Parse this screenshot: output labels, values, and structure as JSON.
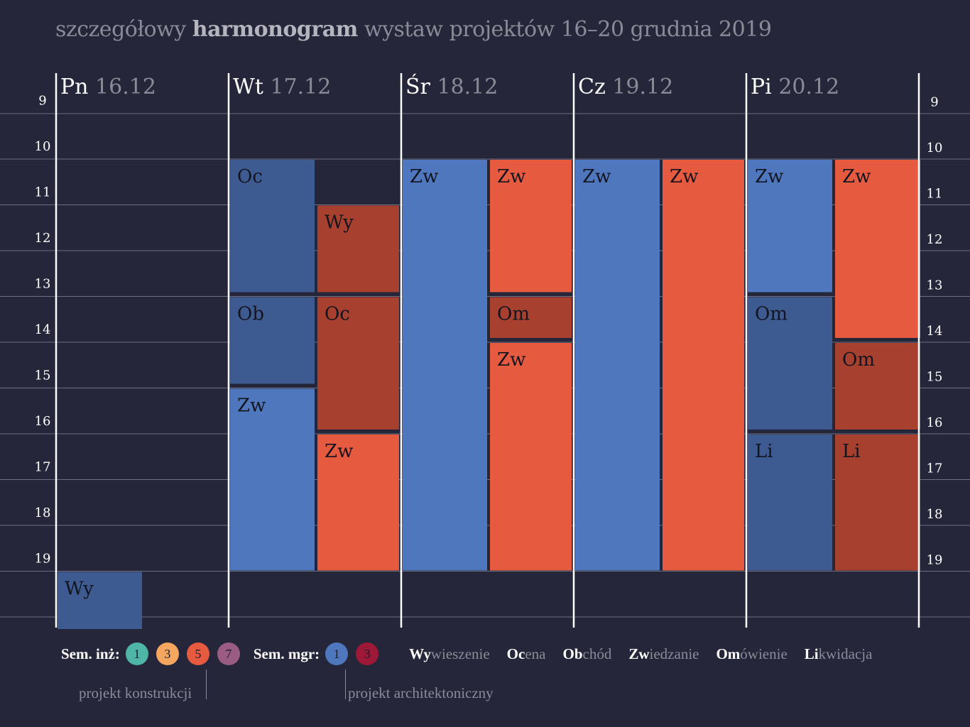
{
  "title": {
    "pre": "szczegółowy ",
    "bold": "harmonogram",
    "post": " wystaw projektów 16–20 grudnia 2019"
  },
  "colors": {
    "background": "#26263a",
    "blue": "#4e77bd",
    "blue_dark": "#3e5b91",
    "red": "#e65a40",
    "red_dark": "#a8402f",
    "teal": "#4fb6a7",
    "orange": "#f5a65f",
    "purple": "#9a5c82",
    "crimson": "#9e1837",
    "grid": "#6f6f82"
  },
  "chart_data": {
    "type": "gantt",
    "hours": [
      9,
      10,
      11,
      12,
      13,
      14,
      15,
      16,
      17,
      18,
      19
    ],
    "days": [
      {
        "name": "Pn",
        "date": "16.12"
      },
      {
        "name": "Wt",
        "date": "17.12"
      },
      {
        "name": "Śr",
        "date": "18.12"
      },
      {
        "name": "Cz",
        "date": "19.12"
      },
      {
        "name": "Pi",
        "date": "20.12"
      }
    ],
    "events": [
      {
        "day": 0,
        "lane": "left",
        "label": "Wy",
        "start": 19,
        "end": 20.3,
        "color": "blue_dark",
        "partial": true
      },
      {
        "day": 1,
        "lane": "left",
        "label": "Oc",
        "start": 10,
        "end": 12.9,
        "color": "blue_dark"
      },
      {
        "day": 1,
        "lane": "left",
        "label": "Ob",
        "start": 13,
        "end": 14.9,
        "color": "blue_dark"
      },
      {
        "day": 1,
        "lane": "left",
        "label": "Zw",
        "start": 15,
        "end": 19,
        "color": "blue"
      },
      {
        "day": 1,
        "lane": "right",
        "label": "Wy",
        "start": 11,
        "end": 12.9,
        "color": "red_dark"
      },
      {
        "day": 1,
        "lane": "right",
        "label": "Oc",
        "start": 13,
        "end": 15.9,
        "color": "red_dark"
      },
      {
        "day": 1,
        "lane": "right",
        "label": "Zw",
        "start": 16,
        "end": 19,
        "color": "red"
      },
      {
        "day": 2,
        "lane": "left",
        "label": "Zw",
        "start": 10,
        "end": 19,
        "color": "blue"
      },
      {
        "day": 2,
        "lane": "right",
        "label": "Zw",
        "start": 10,
        "end": 12.9,
        "color": "red"
      },
      {
        "day": 2,
        "lane": "right",
        "label": "Om",
        "start": 13,
        "end": 13.9,
        "color": "red_dark"
      },
      {
        "day": 2,
        "lane": "right",
        "label": "Zw",
        "start": 14,
        "end": 19,
        "color": "red"
      },
      {
        "day": 3,
        "lane": "left",
        "label": "Zw",
        "start": 10,
        "end": 19,
        "color": "blue"
      },
      {
        "day": 3,
        "lane": "right",
        "label": "Zw",
        "start": 10,
        "end": 19,
        "color": "red"
      },
      {
        "day": 4,
        "lane": "left",
        "label": "Zw",
        "start": 10,
        "end": 12.9,
        "color": "blue"
      },
      {
        "day": 4,
        "lane": "left",
        "label": "Om",
        "start": 13,
        "end": 15.9,
        "color": "blue_dark"
      },
      {
        "day": 4,
        "lane": "left",
        "label": "Li",
        "start": 16,
        "end": 19,
        "color": "blue_dark"
      },
      {
        "day": 4,
        "lane": "right",
        "label": "Zw",
        "start": 10,
        "end": 13.9,
        "color": "red"
      },
      {
        "day": 4,
        "lane": "right",
        "label": "Om",
        "start": 14,
        "end": 15.9,
        "color": "red_dark"
      },
      {
        "day": 4,
        "lane": "right",
        "label": "Li",
        "start": 16,
        "end": 19,
        "color": "red_dark"
      }
    ]
  },
  "legend": {
    "inz_label": "Sem. inż:",
    "inz": [
      {
        "num": "1",
        "color": "teal"
      },
      {
        "num": "3",
        "color": "orange"
      },
      {
        "num": "5",
        "color": "red"
      },
      {
        "num": "7",
        "color": "purple"
      }
    ],
    "mgr_label": "Sem. mgr:",
    "mgr": [
      {
        "num": "1",
        "color": "blue"
      },
      {
        "num": "3",
        "color": "crimson"
      }
    ],
    "abbreviations": [
      {
        "abbr": "Wy",
        "rest": "wieszenie"
      },
      {
        "abbr": "Oc",
        "rest": "ena"
      },
      {
        "abbr": "Ob",
        "rest": "chód"
      },
      {
        "abbr": "Zw",
        "rest": "iedzanie"
      },
      {
        "abbr": "Om",
        "rest": "ówienie"
      },
      {
        "abbr": "Li",
        "rest": "kwidacja"
      }
    ],
    "note_inz": "projekt konstrukcji",
    "note_mgr": "projekt architektoniczny"
  }
}
